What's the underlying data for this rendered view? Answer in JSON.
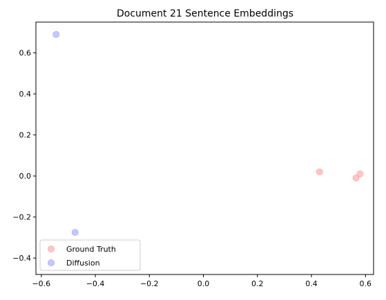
{
  "chart_data": {
    "type": "scatter",
    "title": "Document 21 Sentence Embeddings",
    "xlabel": "",
    "ylabel": "",
    "xlim": [
      -0.62,
      0.63
    ],
    "ylim": [
      -0.48,
      0.75
    ],
    "x_ticks": [
      -0.6,
      -0.4,
      -0.2,
      0.0,
      0.2,
      0.4,
      0.6
    ],
    "x_tick_labels": [
      "−0.6",
      "−0.4",
      "−0.2",
      "0.0",
      "0.2",
      "0.4",
      "0.6"
    ],
    "y_ticks": [
      -0.4,
      -0.2,
      0.0,
      0.2,
      0.4,
      0.6
    ],
    "y_tick_labels": [
      "−0.4",
      "−0.2",
      "0.0",
      "0.2",
      "0.4",
      "0.6"
    ],
    "grid": false,
    "legend_position": "lower-left",
    "series": [
      {
        "name": "Ground Truth",
        "color": "#ff9999",
        "points": [
          {
            "x": 0.43,
            "y": 0.02
          },
          {
            "x": 0.58,
            "y": 0.01
          },
          {
            "x": 0.565,
            "y": -0.01
          }
        ]
      },
      {
        "name": "Diffusion",
        "color": "#9999ff",
        "points": [
          {
            "x": -0.545,
            "y": 0.69
          },
          {
            "x": -0.475,
            "y": -0.275
          }
        ]
      }
    ]
  }
}
